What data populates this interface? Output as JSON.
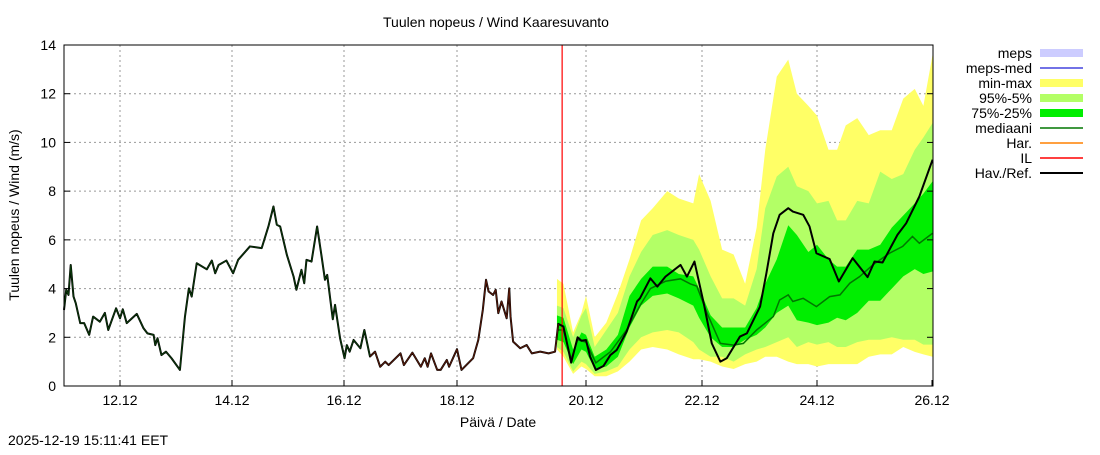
{
  "chart_data": {
    "type": "line",
    "title": "Tuulen nopeus / Wind  Kaaresuvanto",
    "xlabel": "Päivä / Date",
    "ylabel": "Tuulen nopeus / Wind (m/s)",
    "ylim": [
      0,
      14
    ],
    "xlim_days": [
      11.0,
      26.02
    ],
    "yticks": [
      0,
      2,
      4,
      6,
      8,
      10,
      12,
      14
    ],
    "xticks": [
      {
        "day": 12,
        "label": "12.12"
      },
      {
        "day": 14,
        "label": "14.12"
      },
      {
        "day": 16,
        "label": "16.12"
      },
      {
        "day": 18,
        "label": "18.12"
      },
      {
        "day": 20,
        "label": "20.12"
      },
      {
        "day": 22,
        "label": "22.12"
      },
      {
        "day": 24,
        "label": "24.12"
      },
      {
        "day": 26,
        "label": "26.12"
      }
    ],
    "grid": true,
    "legend_placement": "right",
    "legend": [
      {
        "label": "meps",
        "kind": "band",
        "color": "#ccccff"
      },
      {
        "label": "meps-med",
        "kind": "line",
        "color": "#4444dd"
      },
      {
        "label": "min-max",
        "kind": "band",
        "color": "#ffff66"
      },
      {
        "label": "95%-5%",
        "kind": "band",
        "color": "#b3ff66"
      },
      {
        "label": "75%-25%",
        "kind": "band",
        "color": "#00ee00"
      },
      {
        "label": "mediaani",
        "kind": "line",
        "color": "#007700"
      },
      {
        "label": "Har.",
        "kind": "line",
        "color": "#ff8000"
      },
      {
        "label": "IL",
        "kind": "line",
        "color": "#ff0000"
      },
      {
        "label": "Hav./Ref.",
        "kind": "line",
        "color": "#000000"
      }
    ],
    "il_day": 19.63,
    "observed": [
      [
        11.0,
        3.12
      ],
      [
        11.04,
        3.95
      ],
      [
        11.08,
        3.74
      ],
      [
        11.12,
        4.97
      ],
      [
        11.17,
        3.67
      ],
      [
        11.21,
        3.4
      ],
      [
        11.29,
        2.58
      ],
      [
        11.36,
        2.58
      ],
      [
        11.45,
        2.1
      ],
      [
        11.52,
        2.85
      ],
      [
        11.64,
        2.64
      ],
      [
        11.73,
        3.0
      ],
      [
        11.79,
        2.3
      ],
      [
        11.93,
        3.19
      ],
      [
        12.0,
        2.78
      ],
      [
        12.05,
        3.15
      ],
      [
        12.12,
        2.58
      ],
      [
        12.3,
        2.96
      ],
      [
        12.42,
        2.37
      ],
      [
        12.49,
        2.16
      ],
      [
        12.6,
        2.1
      ],
      [
        12.63,
        1.68
      ],
      [
        12.67,
        1.96
      ],
      [
        12.74,
        1.27
      ],
      [
        12.82,
        1.41
      ],
      [
        12.92,
        1.14
      ],
      [
        13.07,
        0.66
      ],
      [
        13.16,
        2.85
      ],
      [
        13.23,
        4.01
      ],
      [
        13.28,
        3.67
      ],
      [
        13.37,
        5.04
      ],
      [
        13.55,
        4.79
      ],
      [
        13.64,
        5.15
      ],
      [
        13.7,
        4.63
      ],
      [
        13.76,
        4.97
      ],
      [
        13.9,
        5.15
      ],
      [
        14.02,
        4.63
      ],
      [
        14.11,
        5.18
      ],
      [
        14.32,
        5.73
      ],
      [
        14.53,
        5.66
      ],
      [
        14.65,
        6.55
      ],
      [
        14.74,
        7.37
      ],
      [
        14.8,
        6.62
      ],
      [
        14.86,
        6.55
      ],
      [
        14.98,
        5.38
      ],
      [
        15.1,
        4.49
      ],
      [
        15.15,
        3.95
      ],
      [
        15.24,
        4.77
      ],
      [
        15.29,
        4.22
      ],
      [
        15.33,
        5.18
      ],
      [
        15.42,
        5.11
      ],
      [
        15.52,
        6.55
      ],
      [
        15.6,
        5.32
      ],
      [
        15.66,
        4.36
      ],
      [
        15.7,
        4.56
      ],
      [
        15.8,
        2.74
      ],
      [
        15.84,
        3.33
      ],
      [
        15.93,
        1.96
      ],
      [
        16.01,
        1.14
      ],
      [
        16.05,
        1.68
      ],
      [
        16.1,
        1.41
      ],
      [
        16.17,
        1.89
      ],
      [
        16.29,
        1.55
      ],
      [
        16.36,
        2.3
      ],
      [
        16.46,
        1.21
      ],
      [
        16.55,
        1.41
      ],
      [
        16.64,
        0.79
      ],
      [
        16.73,
        1.0
      ],
      [
        16.79,
        0.86
      ],
      [
        17.0,
        1.34
      ],
      [
        17.06,
        0.86
      ],
      [
        17.21,
        1.37
      ],
      [
        17.36,
        0.79
      ],
      [
        17.43,
        1.14
      ],
      [
        17.48,
        0.79
      ],
      [
        17.54,
        1.34
      ],
      [
        17.65,
        0.66
      ],
      [
        17.71,
        0.66
      ],
      [
        17.82,
        1.07
      ],
      [
        17.86,
        0.79
      ],
      [
        18.0,
        1.51
      ],
      [
        18.07,
        0.66
      ],
      [
        18.25,
        1.14
      ],
      [
        18.33,
        1.89
      ],
      [
        18.4,
        3.12
      ],
      [
        18.45,
        4.36
      ],
      [
        18.49,
        3.88
      ],
      [
        18.56,
        3.74
      ],
      [
        18.6,
        3.95
      ],
      [
        18.64,
        2.99
      ],
      [
        18.69,
        3.47
      ],
      [
        18.77,
        2.78
      ],
      [
        18.81,
        4.01
      ],
      [
        18.83,
        2.85
      ],
      [
        18.87,
        1.82
      ],
      [
        18.98,
        1.55
      ],
      [
        19.08,
        1.68
      ],
      [
        19.16,
        1.34
      ],
      [
        19.29,
        1.41
      ],
      [
        19.42,
        1.34
      ],
      [
        19.52,
        1.41
      ],
      [
        19.57,
        2.55
      ],
      [
        19.65,
        2.44
      ],
      [
        19.77,
        0.96
      ],
      [
        19.87,
        2.0
      ],
      [
        19.93,
        1.86
      ],
      [
        20.0,
        1.89
      ],
      [
        20.07,
        1.21
      ],
      [
        20.17,
        0.66
      ],
      [
        20.3,
        0.82
      ],
      [
        20.42,
        1.27
      ],
      [
        20.53,
        1.48
      ],
      [
        20.7,
        2.23
      ],
      [
        20.88,
        3.47
      ],
      [
        20.93,
        3.6
      ],
      [
        21.11,
        4.42
      ],
      [
        21.23,
        4.08
      ],
      [
        21.37,
        4.49
      ],
      [
        21.63,
        4.97
      ],
      [
        21.74,
        4.49
      ],
      [
        21.87,
        5.11
      ],
      [
        22.03,
        3.4
      ],
      [
        22.17,
        1.75
      ],
      [
        22.32,
        1.0
      ],
      [
        22.43,
        1.14
      ],
      [
        22.66,
        2.03
      ],
      [
        22.78,
        2.16
      ],
      [
        23.01,
        3.26
      ],
      [
        23.12,
        4.63
      ],
      [
        23.24,
        6.27
      ],
      [
        23.35,
        7.03
      ],
      [
        23.5,
        7.3
      ],
      [
        23.58,
        7.16
      ],
      [
        23.76,
        7.03
      ],
      [
        23.87,
        6.55
      ],
      [
        23.99,
        5.45
      ],
      [
        24.22,
        5.21
      ],
      [
        24.38,
        4.29
      ],
      [
        24.62,
        5.25
      ],
      [
        24.88,
        4.47
      ],
      [
        25.0,
        5.11
      ],
      [
        25.14,
        5.07
      ],
      [
        25.4,
        6.21
      ],
      [
        25.55,
        6.68
      ],
      [
        25.78,
        7.78
      ],
      [
        26.01,
        9.29
      ]
    ],
    "median": [
      [
        19.55,
        2.3
      ],
      [
        19.65,
        2.3
      ],
      [
        19.77,
        1.1
      ],
      [
        19.87,
        1.9
      ],
      [
        20.0,
        1.8
      ],
      [
        20.17,
        0.95
      ],
      [
        20.42,
        1.4
      ],
      [
        20.7,
        2.3
      ],
      [
        20.93,
        3.3
      ],
      [
        21.11,
        4.0
      ],
      [
        21.37,
        4.3
      ],
      [
        21.63,
        4.4
      ],
      [
        21.8,
        4.19
      ],
      [
        21.91,
        4.1
      ],
      [
        22.09,
        2.98
      ],
      [
        22.32,
        1.75
      ],
      [
        22.55,
        1.68
      ],
      [
        22.72,
        1.75
      ],
      [
        22.95,
        2.3
      ],
      [
        23.24,
        2.85
      ],
      [
        23.35,
        3.53
      ],
      [
        23.5,
        3.74
      ],
      [
        23.58,
        3.47
      ],
      [
        23.76,
        3.6
      ],
      [
        23.99,
        3.26
      ],
      [
        24.22,
        3.67
      ],
      [
        24.4,
        3.74
      ],
      [
        24.57,
        4.22
      ],
      [
        24.74,
        4.49
      ],
      [
        24.97,
        4.97
      ],
      [
        25.26,
        5.45
      ],
      [
        25.49,
        5.73
      ],
      [
        25.66,
        6.14
      ],
      [
        25.78,
        5.86
      ],
      [
        26.01,
        6.27
      ]
    ],
    "bands_columns": [
      "day",
      "min",
      "p5",
      "p25",
      "p75",
      "p95",
      "max"
    ],
    "bands": [
      [
        19.55,
        1.5,
        1.6,
        1.9,
        2.9,
        3.3,
        4.4
      ],
      [
        19.65,
        1.2,
        1.4,
        1.8,
        2.8,
        3.2,
        4.2
      ],
      [
        19.8,
        0.5,
        0.6,
        0.9,
        1.5,
        2.0,
        2.2
      ],
      [
        19.93,
        0.8,
        1.0,
        1.5,
        2.2,
        2.9,
        3.0
      ],
      [
        20.0,
        0.7,
        0.9,
        1.4,
        2.1,
        3.2,
        3.7
      ],
      [
        20.15,
        0.4,
        0.5,
        0.7,
        1.2,
        1.6,
        2.0
      ],
      [
        20.35,
        0.4,
        0.6,
        0.8,
        1.5,
        2.3,
        2.6
      ],
      [
        20.55,
        0.6,
        0.8,
        1.2,
        2.1,
        3.0,
        3.8
      ],
      [
        20.75,
        1.0,
        1.5,
        2.4,
        3.7,
        4.5,
        5.2
      ],
      [
        20.95,
        1.5,
        2.0,
        3.3,
        4.4,
        5.5,
        6.8
      ],
      [
        21.15,
        1.6,
        2.2,
        3.7,
        4.9,
        6.2,
        7.3
      ],
      [
        21.4,
        1.5,
        2.3,
        3.8,
        4.9,
        6.4,
        8.0
      ],
      [
        21.6,
        1.3,
        2.2,
        3.6,
        4.6,
        6.2,
        7.7
      ],
      [
        21.85,
        1.1,
        1.8,
        3.3,
        4.5,
        6.0,
        7.5
      ],
      [
        21.95,
        1.1,
        1.5,
        2.8,
        4.0,
        5.6,
        8.7
      ],
      [
        22.15,
        1.0,
        1.2,
        2.0,
        2.9,
        4.5,
        7.6
      ],
      [
        22.35,
        0.8,
        1.2,
        1.6,
        2.4,
        3.6,
        5.6
      ],
      [
        22.55,
        0.7,
        1.0,
        1.6,
        2.4,
        3.6,
        5.4
      ],
      [
        22.75,
        0.9,
        1.3,
        1.9,
        2.4,
        3.3,
        4.2
      ],
      [
        22.95,
        1.0,
        1.5,
        2.1,
        3.2,
        4.8,
        6.5
      ],
      [
        23.1,
        1.2,
        1.6,
        2.4,
        4.2,
        7.3,
        9.7
      ],
      [
        23.3,
        1.2,
        1.8,
        3.0,
        5.2,
        8.6,
        12.7
      ],
      [
        23.5,
        1.0,
        2.0,
        3.3,
        6.6,
        9.0,
        13.4
      ],
      [
        23.65,
        0.9,
        1.6,
        2.7,
        6.2,
        8.2,
        12.0
      ],
      [
        23.85,
        0.9,
        1.8,
        2.6,
        5.5,
        8.0,
        11.5
      ],
      [
        24.0,
        0.8,
        1.7,
        2.5,
        5.8,
        7.5,
        11.1
      ],
      [
        24.2,
        0.9,
        1.8,
        2.6,
        5.2,
        7.6,
        9.7
      ],
      [
        24.35,
        0.9,
        1.6,
        2.8,
        4.9,
        6.8,
        9.7
      ],
      [
        24.5,
        0.9,
        1.6,
        2.7,
        4.9,
        6.8,
        10.7
      ],
      [
        24.7,
        0.9,
        1.8,
        3.0,
        5.6,
        7.6,
        11.0
      ],
      [
        24.9,
        1.2,
        1.9,
        3.5,
        5.6,
        7.5,
        10.3
      ],
      [
        25.1,
        1.3,
        1.9,
        3.5,
        5.8,
        8.8,
        10.5
      ],
      [
        25.3,
        1.3,
        2.0,
        4.0,
        6.5,
        8.5,
        10.5
      ],
      [
        25.5,
        1.6,
        1.9,
        4.5,
        7.0,
        8.7,
        11.8
      ],
      [
        25.7,
        1.4,
        1.9,
        4.8,
        7.5,
        9.7,
        12.2
      ],
      [
        25.85,
        1.3,
        1.7,
        4.6,
        7.9,
        10.2,
        11.5
      ],
      [
        26.01,
        1.2,
        1.7,
        4.7,
        8.4,
        10.8,
        13.6
      ]
    ]
  },
  "footer": {
    "timestamp": "2025-12-19 15:11:41 EET"
  }
}
